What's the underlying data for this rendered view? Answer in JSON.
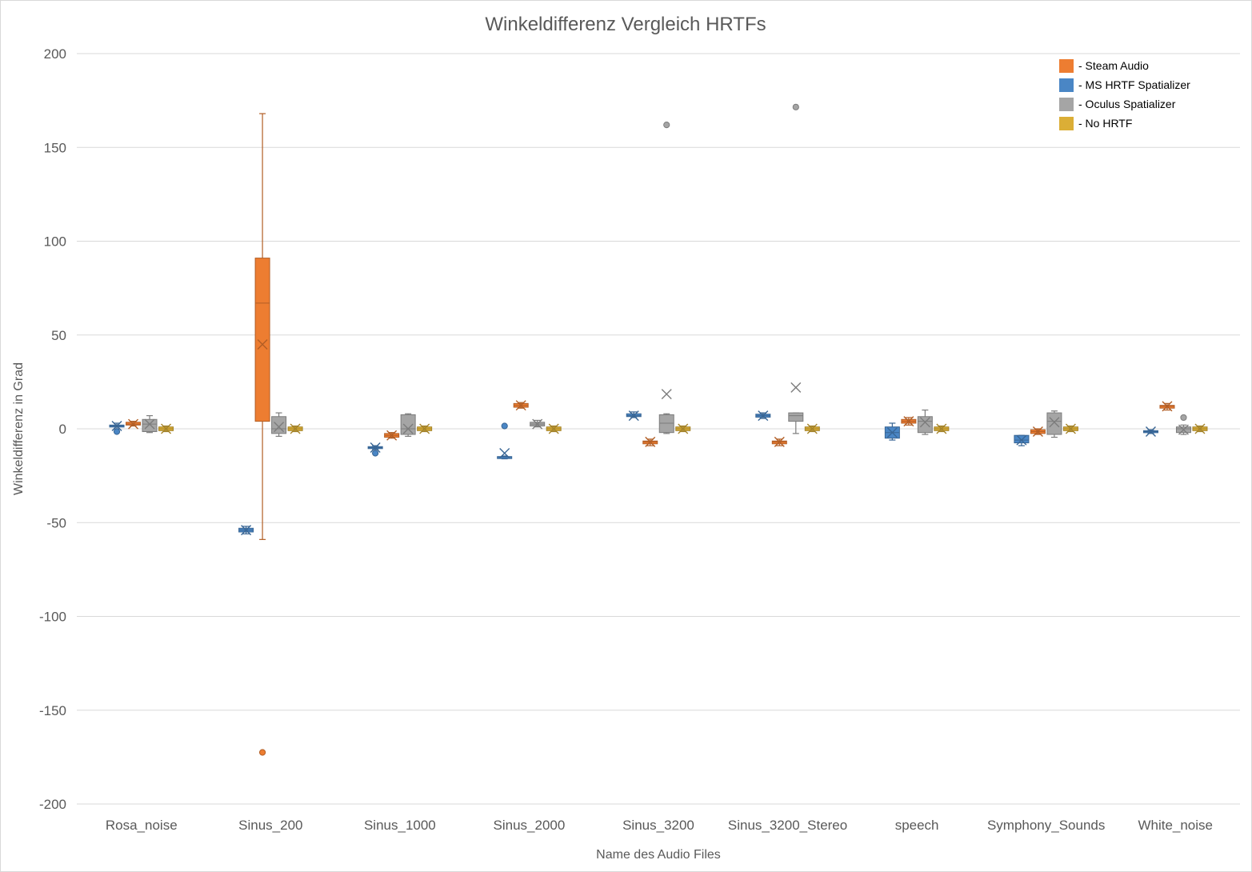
{
  "chart_data": {
    "type": "boxplot",
    "title": "Winkeldifferenz Vergleich HRTFs",
    "xlabel": "Name des Audio Files",
    "ylabel": "Winkeldifferenz in Grad",
    "ylim": [
      -200,
      200
    ],
    "yticks": [
      200,
      150,
      100,
      50,
      0,
      -50,
      -100,
      -150,
      -200
    ],
    "grid": true,
    "legend_position": "top-right",
    "categories": [
      "Rosa_noise",
      "Sinus_200",
      "Sinus_1000",
      "Sinus_2000",
      "Sinus_3200",
      "Sinus_3200_Stereo",
      "speech",
      "Symphony_Sounds",
      "White_noise"
    ],
    "series": [
      {
        "name": "MS HRTF Spatializer",
        "legend_label": " - MS HRTF Spatializer",
        "color": "#4a86c5",
        "boxes": [
          {
            "min": 0,
            "q1": 1,
            "median": 1.5,
            "q3": 2,
            "max": 3,
            "mean": 1.5,
            "outliers": [
              -1.5
            ]
          },
          {
            "min": -56,
            "q1": -55,
            "median": -54,
            "q3": -53,
            "max": -52,
            "mean": -54,
            "outliers": []
          },
          {
            "min": -11,
            "q1": -10.5,
            "median": -10,
            "q3": -9.5,
            "max": -9,
            "mean": -10,
            "outliers": [
              -13
            ]
          },
          {
            "min": -16,
            "q1": -15.5,
            "median": -15,
            "q3": -14.8,
            "max": -14.5,
            "mean": -13,
            "outliers": [
              1.5
            ]
          },
          {
            "min": 6,
            "q1": 6.5,
            "median": 7,
            "q3": 8,
            "max": 9,
            "mean": 7,
            "outliers": []
          },
          {
            "min": 5.5,
            "q1": 6.2,
            "median": 7,
            "q3": 7.8,
            "max": 8.5,
            "mean": 7,
            "outliers": []
          },
          {
            "min": -6,
            "q1": -5,
            "median": -2,
            "q3": 1,
            "max": 3,
            "mean": -2,
            "outliers": []
          },
          {
            "min": -9,
            "q1": -7.5,
            "median": -6,
            "q3": -3.5,
            "max": -3.5,
            "mean": -6,
            "outliers": []
          },
          {
            "min": -2.5,
            "q1": -2,
            "median": -1.5,
            "q3": -1,
            "max": -0.5,
            "mean": -1.5,
            "outliers": []
          }
        ]
      },
      {
        "name": "Steam Audio",
        "legend_label": " - Steam Audio",
        "color": "#ed7d31",
        "boxes": [
          {
            "min": 1.5,
            "q1": 2,
            "median": 2.5,
            "q3": 3.5,
            "max": 4,
            "mean": 2.5,
            "outliers": []
          },
          {
            "min": -59,
            "q1": 4,
            "median": 67,
            "q3": 91,
            "max": 168,
            "mean": 45,
            "outliers": [
              -172.5
            ]
          },
          {
            "min": -5,
            "q1": -4.5,
            "median": -3.5,
            "q3": -2.5,
            "max": -2,
            "mean": -3.5,
            "outliers": []
          },
          {
            "min": 11,
            "q1": 11.5,
            "median": 12.5,
            "q3": 13.5,
            "max": 14,
            "mean": 12.5,
            "outliers": []
          },
          {
            "min": -9,
            "q1": -8,
            "median": -7,
            "q3": -6.5,
            "max": -5.5,
            "mean": -7,
            "outliers": []
          },
          {
            "min": -9,
            "q1": -8,
            "median": -7,
            "q3": -6.5,
            "max": -5.5,
            "mean": -7,
            "outliers": []
          },
          {
            "min": 2,
            "q1": 3,
            "median": 4,
            "q3": 5,
            "max": 6,
            "mean": 4,
            "outliers": []
          },
          {
            "min": -3,
            "q1": -2.5,
            "median": -1.5,
            "q3": -0.5,
            "max": 0,
            "mean": -1.5,
            "outliers": []
          },
          {
            "min": 10,
            "q1": 11,
            "median": 12,
            "q3": 12.5,
            "max": 13.5,
            "mean": 12,
            "outliers": []
          }
        ]
      },
      {
        "name": "Oculus Spatializer",
        "legend_label": " - Oculus Spatializer",
        "color": "#a5a5a5",
        "boxes": [
          {
            "min": -2,
            "q1": -1.5,
            "median": 2.5,
            "q3": 5,
            "max": 7,
            "mean": 2.5,
            "outliers": []
          },
          {
            "min": -4,
            "q1": -2.5,
            "median": 0,
            "q3": 6.5,
            "max": 8.5,
            "mean": 1,
            "outliers": []
          },
          {
            "min": -4,
            "q1": -3,
            "median": 0,
            "q3": 7.5,
            "max": 8,
            "mean": 0,
            "outliers": []
          },
          {
            "min": 1,
            "q1": 1.5,
            "median": 2.5,
            "q3": 3.5,
            "max": 4.5,
            "mean": 2.5,
            "outliers": []
          },
          {
            "min": -2.5,
            "q1": -2,
            "median": 3,
            "q3": 7.5,
            "max": 8,
            "mean": 18.5,
            "outliers": [
              162
            ]
          },
          {
            "min": -2.5,
            "q1": 4,
            "median": 7,
            "q3": 8.5,
            "max": 8.5,
            "mean": 22,
            "outliers": [
              171.5
            ]
          },
          {
            "min": -3,
            "q1": -2,
            "median": 4,
            "q3": 6.5,
            "max": 10,
            "mean": 3.5,
            "outliers": []
          },
          {
            "min": -4.5,
            "q1": -3,
            "median": 4,
            "q3": 8.5,
            "max": 9.5,
            "mean": 3.5,
            "outliers": []
          },
          {
            "min": -3,
            "q1": -2,
            "median": 0,
            "q3": 1,
            "max": 2,
            "mean": -0.5,
            "outliers": [
              6
            ]
          }
        ]
      },
      {
        "name": "No HRTF",
        "legend_label": " - No HRTF",
        "color": "#dbae36",
        "boxes": [
          {
            "min": -1.5,
            "q1": -1,
            "median": 0,
            "q3": 1,
            "max": 1.5,
            "mean": 0,
            "outliers": []
          },
          {
            "min": -1.5,
            "q1": -1,
            "median": 0,
            "q3": 1,
            "max": 1.5,
            "mean": 0,
            "outliers": []
          },
          {
            "min": -1.5,
            "q1": -1,
            "median": 0,
            "q3": 1,
            "max": 1.5,
            "mean": 0,
            "outliers": []
          },
          {
            "min": -1.5,
            "q1": -1,
            "median": 0,
            "q3": 1,
            "max": 1.5,
            "mean": 0,
            "outliers": []
          },
          {
            "min": -1.5,
            "q1": -1,
            "median": 0,
            "q3": 1,
            "max": 1.5,
            "mean": 0,
            "outliers": []
          },
          {
            "min": -1.5,
            "q1": -1,
            "median": 0,
            "q3": 1,
            "max": 1.5,
            "mean": 0,
            "outliers": []
          },
          {
            "min": -1.5,
            "q1": -1,
            "median": 0,
            "q3": 1,
            "max": 1.5,
            "mean": 0,
            "outliers": []
          },
          {
            "min": -1.5,
            "q1": -1,
            "median": 0,
            "q3": 1,
            "max": 1.5,
            "mean": 0,
            "outliers": []
          },
          {
            "min": -1.5,
            "q1": -1,
            "median": 0,
            "q3": 1,
            "max": 1.5,
            "mean": 0,
            "outliers": []
          }
        ]
      }
    ],
    "legend_order": [
      "Steam Audio",
      "MS HRTF Spatializer",
      "Oculus Spatializer",
      "No HRTF"
    ]
  }
}
